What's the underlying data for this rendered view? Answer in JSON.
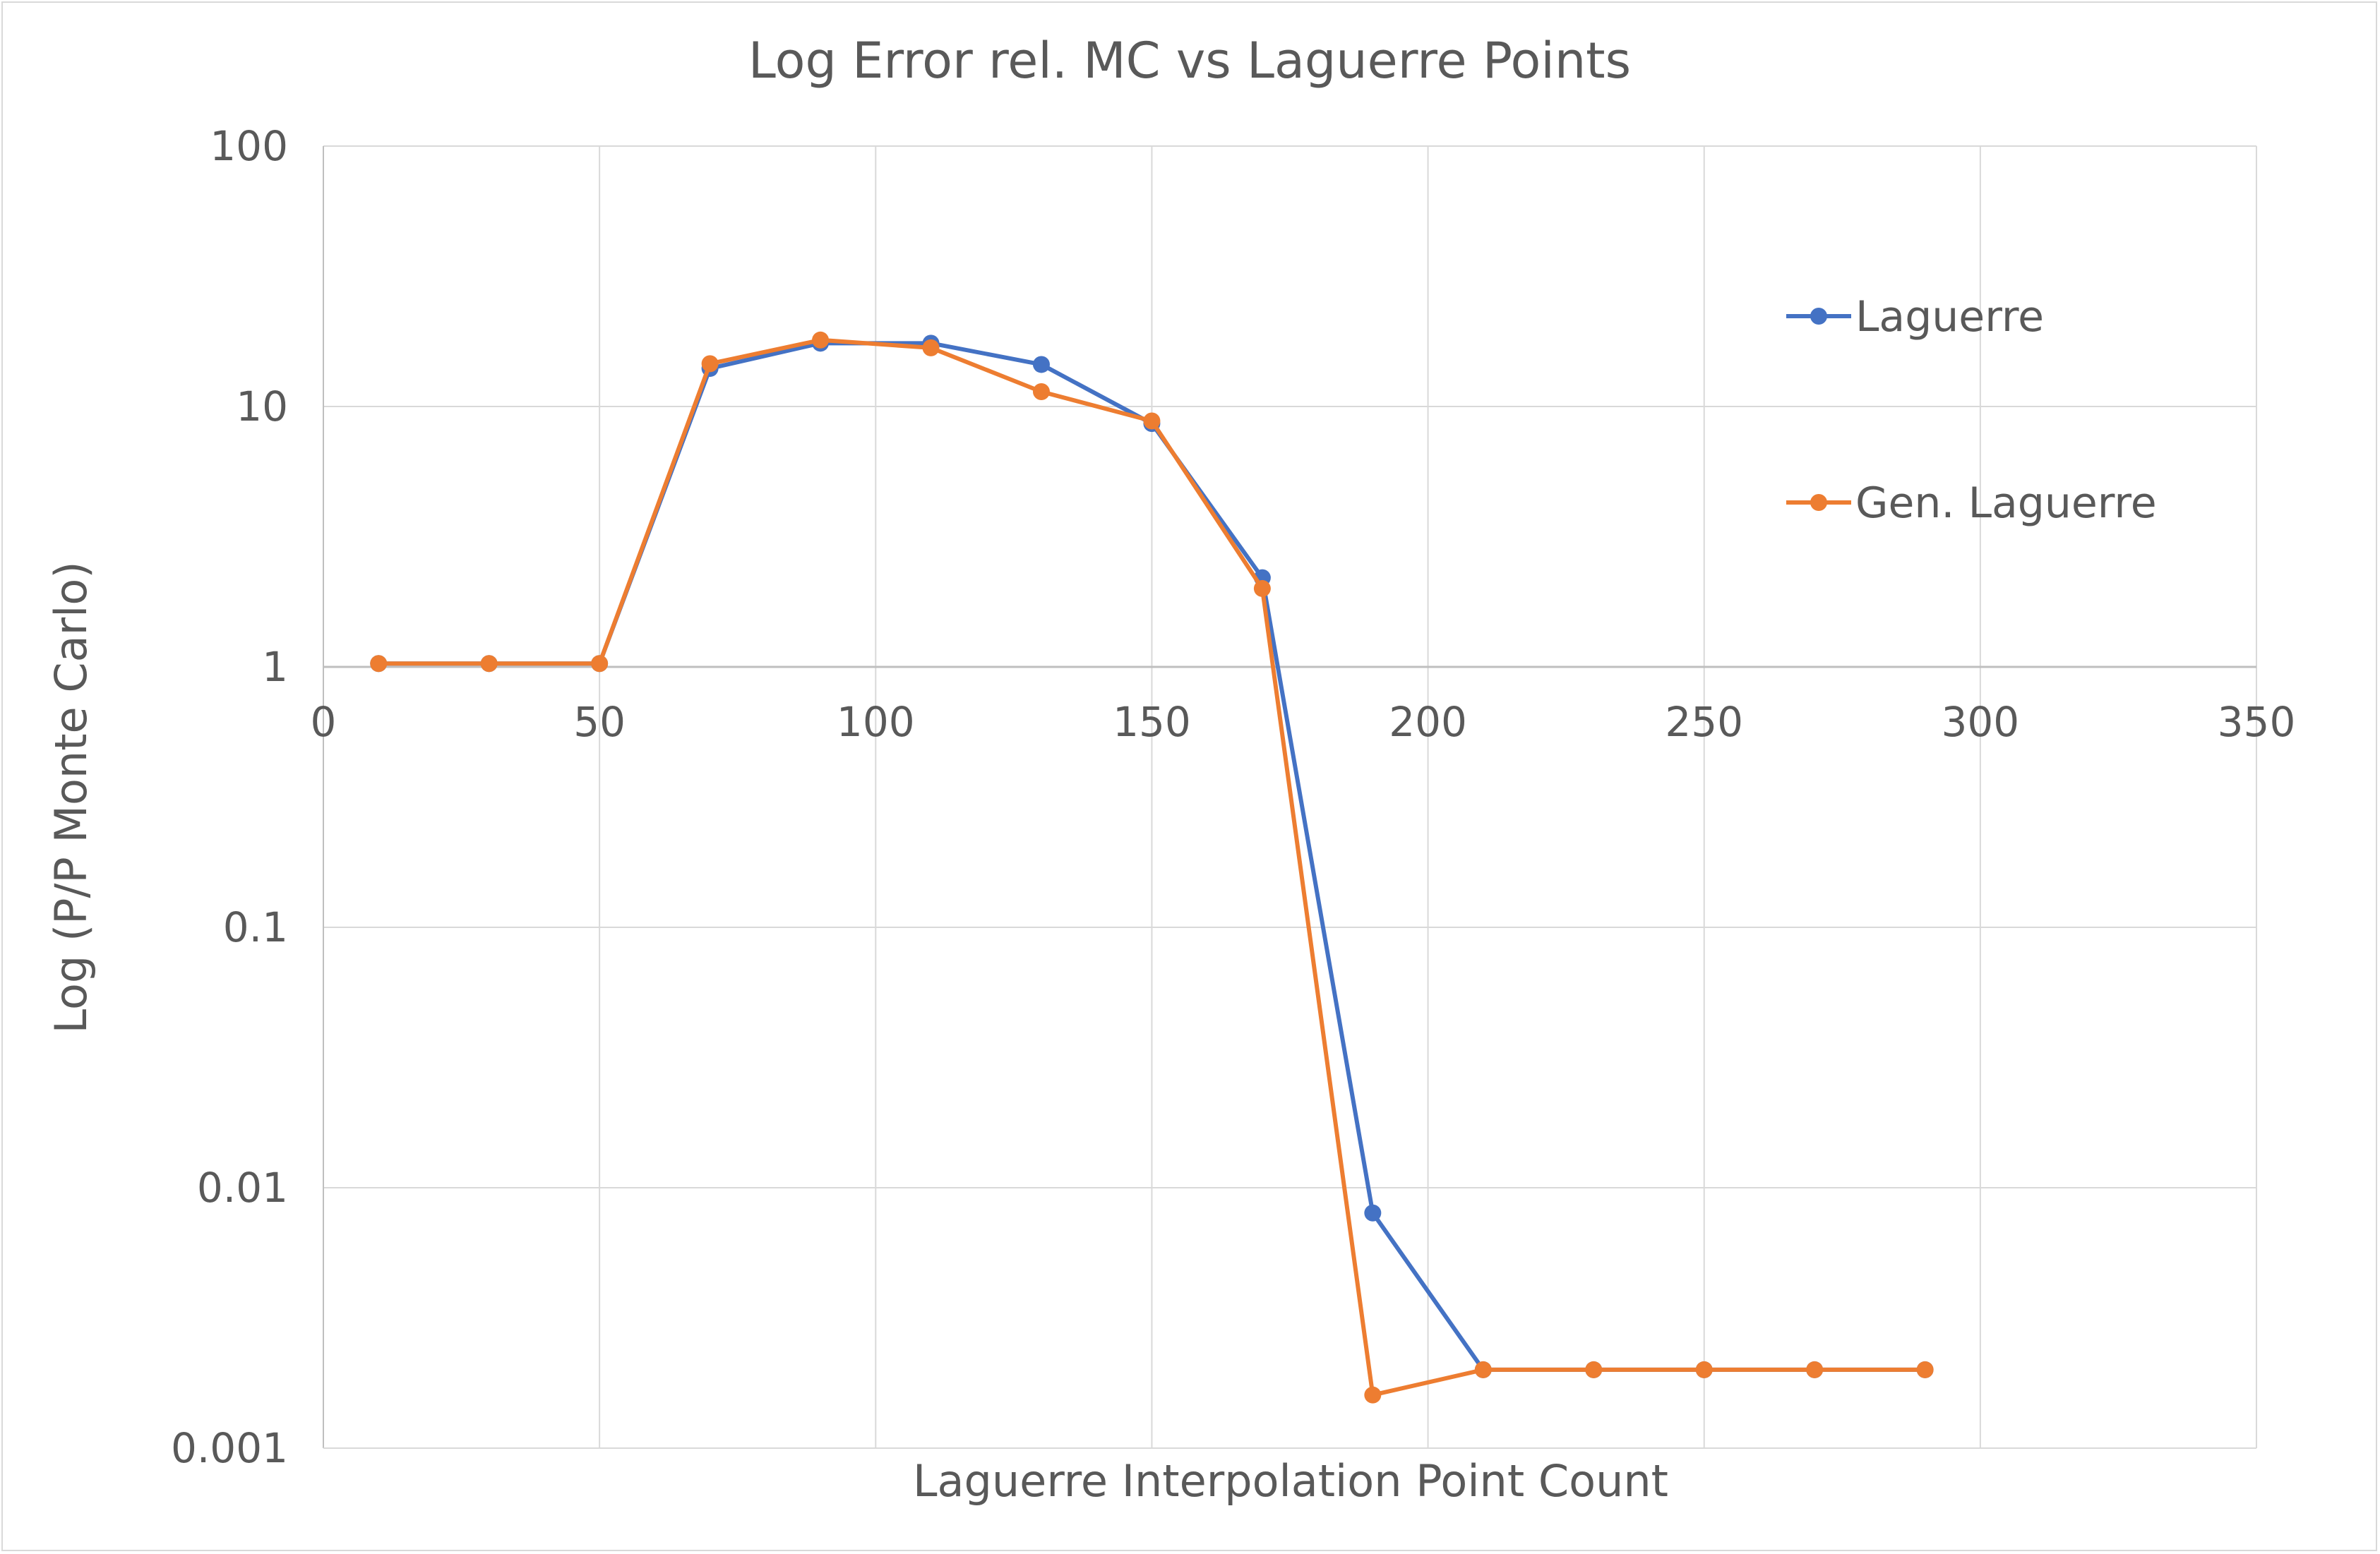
{
  "chart_data": {
    "type": "line",
    "title": "Log Error rel. MC vs Laguerre Points",
    "xlabel": "Laguerre Interpolation Point Count",
    "ylabel": "Log (P/P Monte Carlo)",
    "x_ticks": [
      "0",
      "50",
      "100",
      "150",
      "200",
      "250",
      "300",
      "350"
    ],
    "y_ticks": [
      "100",
      "10",
      "1",
      "0.1",
      "0.01",
      "0.001"
    ],
    "xlim": [
      0,
      350
    ],
    "ylim": [
      0.001,
      100
    ],
    "y_scale": "log",
    "x_axis_crosses_at": 1,
    "grid": true,
    "legend_position": "right",
    "x": [
      10,
      30,
      50,
      70,
      90,
      110,
      130,
      150,
      170,
      190,
      210,
      230,
      250,
      270,
      290
    ],
    "series": [
      {
        "name": "Laguerre",
        "color": "#4472C4",
        "values": [
          1.03,
          1.03,
          1.03,
          14.0,
          17.5,
          17.5,
          14.5,
          8.6,
          2.2,
          0.008,
          0.002,
          0.002,
          0.002,
          0.002,
          0.002
        ]
      },
      {
        "name": "Gen. Laguerre",
        "color": "#ED7D31",
        "values": [
          1.03,
          1.03,
          1.03,
          14.6,
          18.0,
          16.8,
          11.4,
          8.8,
          2.0,
          0.0016,
          0.002,
          0.002,
          0.002,
          0.002,
          0.002
        ]
      }
    ]
  }
}
